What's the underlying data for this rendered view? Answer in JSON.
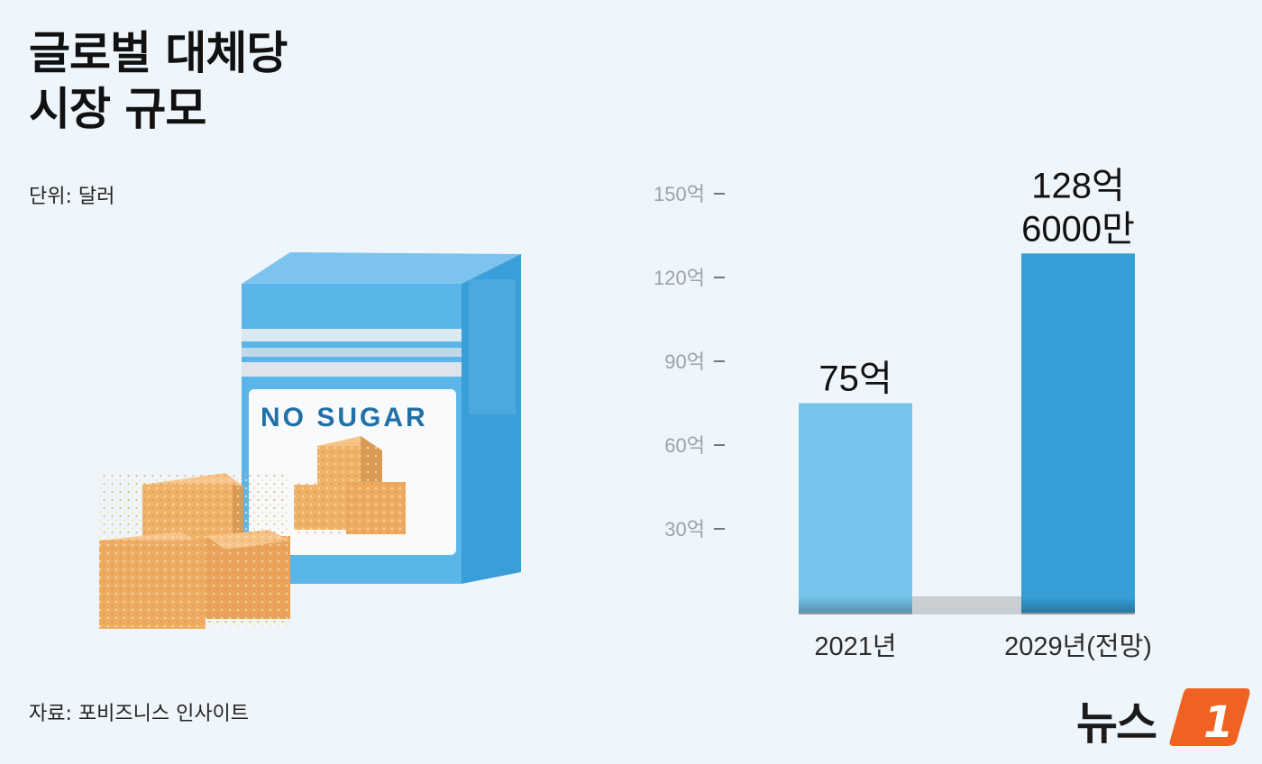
{
  "header": {
    "title_line1": "글로벌 대체당",
    "title_line2": "시장 규모",
    "unit": "단위: 달러"
  },
  "footer": {
    "source": "자료: 포비즈니스 인사이트"
  },
  "illustration": {
    "box_label": "NO SUGAR"
  },
  "logo": {
    "text": "뉴스",
    "mark": "1"
  },
  "colors": {
    "background": "#eef6fb",
    "bar_2021": "#74c4ec",
    "bar_2029": "#369fd7",
    "box_blue": "#55b1e6",
    "sugar": "#f0b169",
    "logo_orange": "#ef6222"
  },
  "chart_data": {
    "type": "bar",
    "categories": [
      "2021년",
      "2029년(전망)"
    ],
    "values": [
      75,
      128.6
    ],
    "value_labels": [
      [
        "75억"
      ],
      [
        "128억",
        "6000만"
      ]
    ],
    "y_ticks": [
      30,
      60,
      90,
      120,
      150
    ],
    "y_tick_labels": [
      "30억",
      "60억",
      "90억",
      "120억",
      "150억"
    ],
    "ylim": [
      0,
      150
    ],
    "grid": false,
    "legend": "none",
    "title": "",
    "xlabel": "",
    "ylabel": ""
  }
}
